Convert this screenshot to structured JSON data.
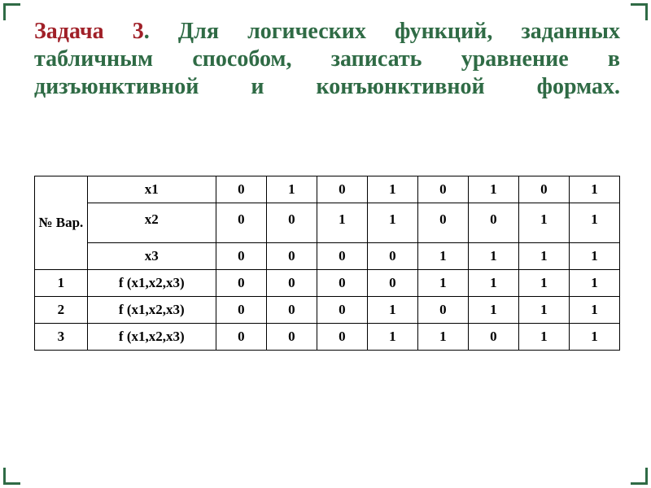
{
  "heading": {
    "lead": "Задача 3",
    "body": ". Для логических функций, заданных табличным способом, записать уравнение в дизъюнктивной и конъюнктивной формах.",
    "lead_color": "#a02028",
    "body_color": "#2f6b45",
    "fontsize": 28,
    "fontweight": "bold",
    "align": "justify"
  },
  "table": {
    "type": "table",
    "border_color": "#000000",
    "background_color": "#ffffff",
    "text_color": "#000000",
    "cell_fontsize": 17,
    "cell_fontweight": "bold",
    "col_widths_pct": [
      9,
      22,
      8.625,
      8.625,
      8.625,
      8.625,
      8.625,
      8.625,
      8.625,
      8.625
    ],
    "header_corner": "№ Вар.",
    "input_rows": [
      {
        "label": "x1",
        "values": [
          0,
          1,
          0,
          1,
          0,
          1,
          0,
          1
        ]
      },
      {
        "label": "x2",
        "values": [
          0,
          0,
          1,
          1,
          0,
          0,
          1,
          1
        ]
      },
      {
        "label": "x3",
        "values": [
          0,
          0,
          0,
          0,
          1,
          1,
          1,
          1
        ]
      }
    ],
    "variants": [
      {
        "n": 1,
        "label": "f (x1,x2,x3)",
        "values": [
          0,
          0,
          0,
          0,
          1,
          1,
          1,
          1
        ]
      },
      {
        "n": 2,
        "label": "f (x1,x2,x3)",
        "values": [
          0,
          0,
          0,
          1,
          0,
          1,
          1,
          1
        ]
      },
      {
        "n": 3,
        "label": "f (x1,x2,x3)",
        "values": [
          0,
          0,
          0,
          1,
          1,
          0,
          1,
          1
        ]
      }
    ]
  }
}
